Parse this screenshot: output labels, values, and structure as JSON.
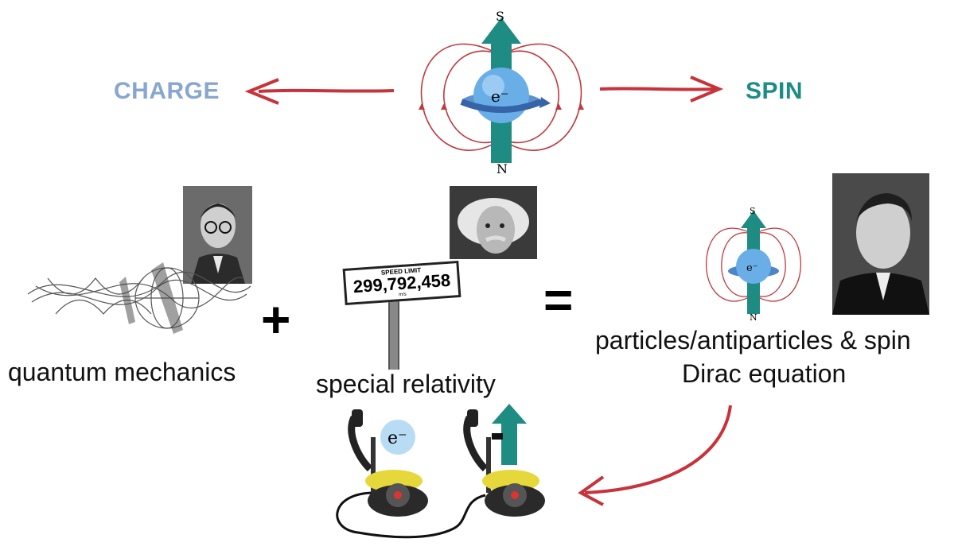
{
  "top": {
    "charge_label": "CHARGE",
    "spin_label": "SPIN",
    "pole_s": "S",
    "pole_n": "N",
    "electron": "e⁻"
  },
  "middle": {
    "plus": "+",
    "equals": "=",
    "quantum_label": "quantum mechanics",
    "relativity_label": "special relativity",
    "result_line1": "particles/antiparticles & spin",
    "result_line2": "Dirac equation",
    "sign_top": "SPEED LIMIT",
    "sign_value": "299,792,458",
    "sign_unit": "m/s",
    "small_pole_s": "S",
    "small_pole_n": "N",
    "small_electron": "e⁻"
  },
  "bottom": {
    "phone_electron": "e⁻"
  },
  "colors": {
    "charge": "#87a7cf",
    "spin": "#1c8d85",
    "arrow_red": "#c8323a",
    "field_line": "#c0393f",
    "teal": "#1f8c84",
    "electron_blue": "#6aaee8"
  },
  "icons": [
    "charge-arrow-icon",
    "spin-arrow-icon",
    "electron-spin-icon",
    "schrodinger-photo",
    "einstein-photo",
    "dirac-photo",
    "speed-limit-sign-icon",
    "phone-icon"
  ]
}
